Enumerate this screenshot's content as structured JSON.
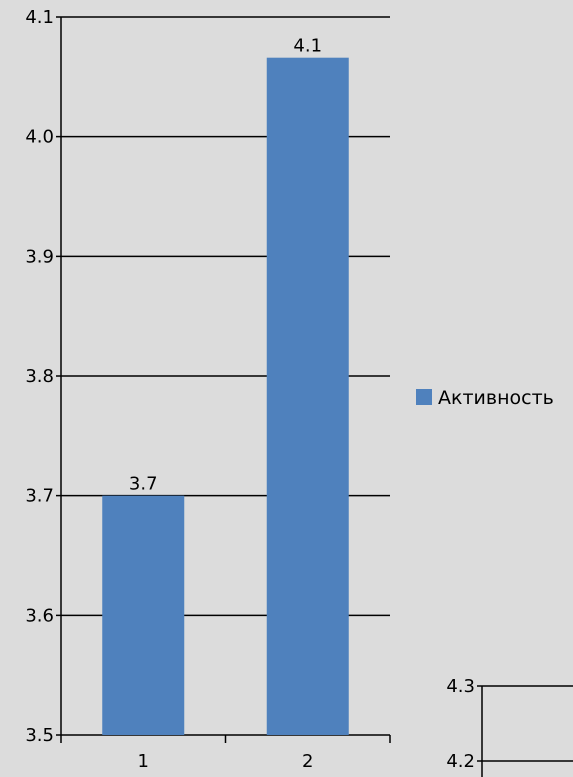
{
  "chart_data": [
    {
      "type": "bar",
      "categories": [
        "1",
        "2"
      ],
      "series": [
        {
          "name": "Активность",
          "values": [
            3.7,
            4.066
          ],
          "data_labels": [
            "3.7",
            "4.1"
          ],
          "color": "#4f81bd"
        }
      ],
      "ylim": [
        3.5,
        4.1
      ],
      "yticks": [
        "3.5",
        "3.6",
        "3.7",
        "3.8",
        "3.9",
        "4.0",
        "4.1"
      ],
      "grid": true,
      "legend": "right"
    },
    {
      "type": "bar",
      "partial": true,
      "yticks": [
        "4.2",
        "4.3"
      ],
      "grid": true
    }
  ],
  "colors": {
    "background": "#dcdcdc",
    "bar": "#4f81bd",
    "axis": "#000000"
  }
}
